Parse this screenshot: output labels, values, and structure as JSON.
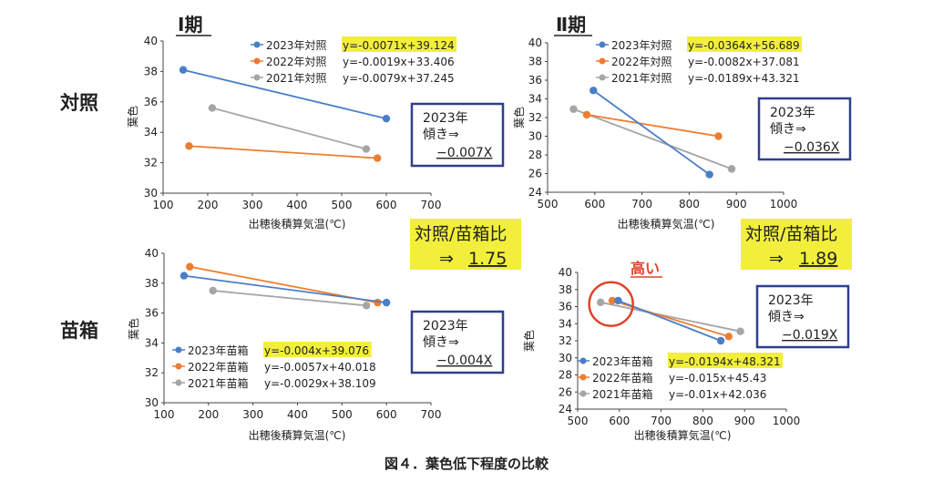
{
  "figure": {
    "caption": "図４．葉色低下程度の比較",
    "col_titles": [
      "Ⅰ期",
      "Ⅱ期"
    ],
    "row_labels": [
      "対照",
      "苗箱"
    ],
    "xlabel": "出穂後積算気温(℃)",
    "ylabel": "葉色"
  },
  "ratio_boxes": [
    {
      "line1": "対照/苗箱比",
      "arrow": "⇒",
      "value": "1.75"
    },
    {
      "line1": "対照/苗箱比",
      "arrow": "⇒",
      "value": "1.89"
    }
  ],
  "high_label": "高い",
  "chart_data": [
    {
      "type": "line",
      "panel": "Ⅰ期 対照",
      "xlabel": "出穂後積算気温(℃)",
      "ylabel": "葉色",
      "xlim": [
        100,
        700
      ],
      "ylim": [
        30,
        40
      ],
      "xticks": [
        100,
        200,
        300,
        400,
        500,
        600,
        700
      ],
      "yticks": [
        30,
        32,
        34,
        36,
        38,
        40
      ],
      "grid": false,
      "legend_position": "top-right",
      "series": [
        {
          "name": "2023年対照",
          "equation": "y=-0.0071x+39.124",
          "x": [
            145,
            600
          ],
          "y": [
            38.1,
            34.9
          ],
          "color": "#4a7ec7"
        },
        {
          "name": "2022年対照",
          "equation": "y=-0.0019x+33.406",
          "x": [
            158,
            580
          ],
          "y": [
            33.1,
            32.3
          ],
          "color": "#ed7d31"
        },
        {
          "name": "2021年対照",
          "equation": "y=-0.0079x+37.245",
          "x": [
            210,
            555
          ],
          "y": [
            35.6,
            32.9
          ],
          "color": "#a5a5a5"
        }
      ],
      "slope_box": {
        "year": "2023年",
        "label": "傾き⇒",
        "value": "−0.007X"
      }
    },
    {
      "type": "line",
      "panel": "Ⅱ期 対照",
      "xlabel": "出穂後積算気温(℃)",
      "ylabel": "葉色",
      "xlim": [
        500,
        1000
      ],
      "ylim": [
        24,
        40
      ],
      "xticks": [
        500,
        600,
        700,
        800,
        900,
        1000
      ],
      "yticks": [
        24,
        26,
        28,
        30,
        32,
        34,
        36,
        38,
        40
      ],
      "grid": false,
      "legend_position": "top-right",
      "series": [
        {
          "name": "2023年対照",
          "equation": "y=-0.0364x+56.689",
          "x": [
            597,
            843
          ],
          "y": [
            34.9,
            25.9
          ],
          "color": "#4a7ec7"
        },
        {
          "name": "2022年対照",
          "equation": "y=-0.0082x+37.081",
          "x": [
            583,
            862
          ],
          "y": [
            32.3,
            30.0
          ],
          "color": "#ed7d31"
        },
        {
          "name": "2021年対照",
          "equation": "y=-0.0189x+43.321",
          "x": [
            555,
            890
          ],
          "y": [
            32.9,
            26.5
          ],
          "color": "#a5a5a5"
        }
      ],
      "slope_box": {
        "year": "2023年",
        "label": "傾き⇒",
        "value": "−0.036X"
      }
    },
    {
      "type": "line",
      "panel": "Ⅰ期 苗箱",
      "xlabel": "出穂後積算気温(℃)",
      "ylabel": "葉色",
      "xlim": [
        100,
        700
      ],
      "ylim": [
        30,
        40
      ],
      "xticks": [
        100,
        200,
        300,
        400,
        500,
        600,
        700
      ],
      "yticks": [
        30,
        32,
        34,
        36,
        38,
        40
      ],
      "grid": false,
      "legend_position": "bottom-left",
      "series": [
        {
          "name": "2023年苗箱",
          "equation": "y=-0.004x+39.076",
          "x": [
            145,
            600
          ],
          "y": [
            38.5,
            36.7
          ],
          "color": "#4a7ec7"
        },
        {
          "name": "2022年苗箱",
          "equation": "y=-0.0057x+40.018",
          "x": [
            158,
            580
          ],
          "y": [
            39.1,
            36.7
          ],
          "color": "#ed7d31"
        },
        {
          "name": "2021年苗箱",
          "equation": "y=-0.0029x+38.109",
          "x": [
            210,
            555
          ],
          "y": [
            37.5,
            36.5
          ],
          "color": "#a5a5a5"
        }
      ],
      "slope_box": {
        "year": "2023年",
        "label": "傾き⇒",
        "value": "−0.004X"
      }
    },
    {
      "type": "line",
      "panel": "Ⅱ期 苗箱",
      "xlabel": "出穂後積算気温(℃)",
      "ylabel": "葉色",
      "xlim": [
        500,
        1000
      ],
      "ylim": [
        24,
        40
      ],
      "xticks": [
        500,
        600,
        700,
        800,
        900,
        1000
      ],
      "yticks": [
        24,
        26,
        28,
        30,
        32,
        34,
        36,
        38,
        40
      ],
      "grid": false,
      "legend_position": "bottom-left",
      "series": [
        {
          "name": "2023年苗箱",
          "equation": "y=-0.0194x+48.321",
          "x": [
            597,
            843
          ],
          "y": [
            36.7,
            32.0
          ],
          "color": "#4a7ec7"
        },
        {
          "name": "2022年苗箱",
          "equation": "y=-0.015x+45.43",
          "x": [
            583,
            862
          ],
          "y": [
            36.7,
            32.5
          ],
          "color": "#ed7d31"
        },
        {
          "name": "2021年苗箱",
          "equation": "y=-0.01x+42.036",
          "x": [
            555,
            890
          ],
          "y": [
            36.5,
            33.1
          ],
          "color": "#a5a5a5"
        }
      ],
      "slope_box": {
        "year": "2023年",
        "label": "傾き⇒",
        "value": "−0.019X"
      }
    }
  ]
}
